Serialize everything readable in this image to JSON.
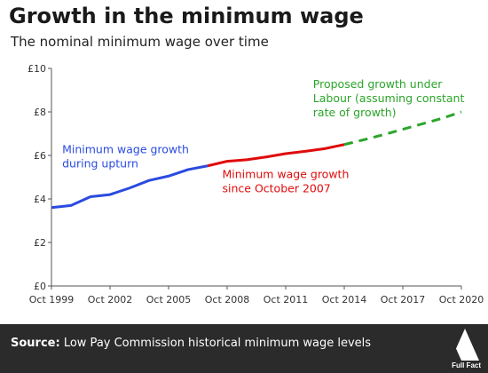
{
  "header": {
    "title": "Growth in the minimum wage",
    "subtitle": "The nominal minimum wage over time"
  },
  "footer": {
    "source_label": "Source:",
    "source_text": "Low Pay Commission historical minimum wage levels",
    "logo_text": "Full Fact"
  },
  "colors": {
    "upturn": "#2a4be0",
    "since2007": "#e00b0b",
    "proposed": "#2aa52a",
    "axis": "#555555",
    "footer_bg": "#2b2b2b"
  },
  "chart_data": {
    "type": "line",
    "title": "Growth in the minimum wage",
    "subtitle": "The nominal minimum wage over time",
    "xlabel": "",
    "ylabel": "",
    "xlim": [
      1999.75,
      2020.75
    ],
    "ylim": [
      0,
      10
    ],
    "grid": false,
    "x_ticks": [
      {
        "x": 1999.75,
        "label": "Oct 1999"
      },
      {
        "x": 2002.75,
        "label": "Oct 2002"
      },
      {
        "x": 2005.75,
        "label": "Oct 2005"
      },
      {
        "x": 2008.75,
        "label": "Oct 2008"
      },
      {
        "x": 2011.75,
        "label": "Oct 2011"
      },
      {
        "x": 2014.75,
        "label": "Oct 2014"
      },
      {
        "x": 2017.75,
        "label": "Oct 2017"
      },
      {
        "x": 2020.75,
        "label": "Oct 2020"
      }
    ],
    "y_ticks": [
      {
        "y": 0,
        "label": "£0"
      },
      {
        "y": 2,
        "label": "£2"
      },
      {
        "y": 4,
        "label": "£4"
      },
      {
        "y": 6,
        "label": "£6"
      },
      {
        "y": 8,
        "label": "£8"
      },
      {
        "y": 10,
        "label": "£10"
      }
    ],
    "series": [
      {
        "key": "upturn",
        "style": "solid",
        "x": [
          1999.25,
          2000.75,
          2001.75,
          2002.75,
          2003.75,
          2004.75,
          2005.75,
          2006.75,
          2007.75
        ],
        "y": [
          3.6,
          3.7,
          4.1,
          4.2,
          4.5,
          4.85,
          5.05,
          5.35,
          5.52
        ]
      },
      {
        "key": "since2007",
        "style": "solid",
        "x": [
          2007.75,
          2008.75,
          2009.75,
          2010.75,
          2011.75,
          2012.75,
          2013.75,
          2014.75
        ],
        "y": [
          5.52,
          5.73,
          5.8,
          5.93,
          6.08,
          6.19,
          6.31,
          6.5
        ]
      },
      {
        "key": "proposed",
        "style": "dashed",
        "x": [
          2014.75,
          2015.75,
          2016.75,
          2017.75,
          2018.75,
          2019.75,
          2020.75
        ],
        "y": [
          6.5,
          6.72,
          6.95,
          7.2,
          7.45,
          7.7,
          8.0
        ]
      }
    ],
    "annotations": [
      {
        "key": "upturn",
        "lines": [
          "Minimum wage growth",
          "during upturn"
        ],
        "x": 2000.3,
        "y": 6.1
      },
      {
        "key": "since2007",
        "lines": [
          "Minimum wage growth",
          "since October  2007"
        ],
        "x": 2008.5,
        "y": 4.95
      },
      {
        "key": "proposed",
        "lines": [
          "Proposed  growth under",
          "Labour (assuming constant",
          "rate of growth)"
        ],
        "x": 2013.15,
        "y": 9.1
      }
    ]
  }
}
